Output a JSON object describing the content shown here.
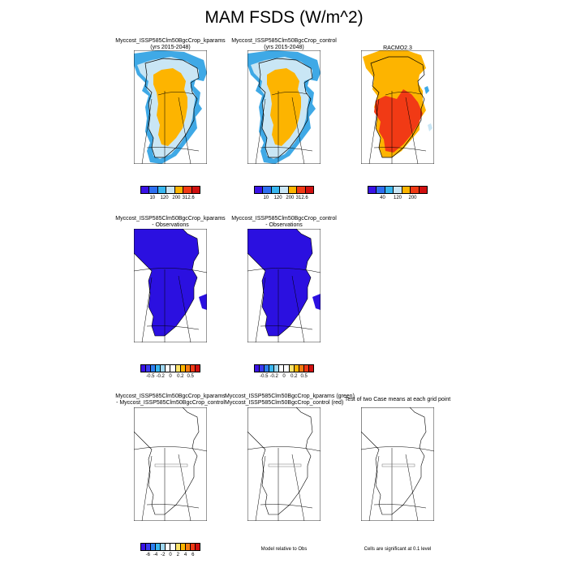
{
  "figure": {
    "title": "MAM FSDS (W/m^2)"
  },
  "colors": {
    "ocean_dark": "#3fa9e6",
    "ocean_light": "#c9e6f5",
    "interior_abs": "#fdb400",
    "interior_racmo_red": "#f13a15",
    "diff_blue": "#2b10e0",
    "outline": "#000000"
  },
  "chart_data": [
    {
      "type": "heatmap",
      "title": "Myccost_ISSP585Clm50BgcCrop_kparams",
      "subtitle": "(yrs 2015-2048)",
      "colorbar": {
        "colors": [
          "#3a12e6",
          "#2e6ff0",
          "#38b6ef",
          "#c9e6f5",
          "#fdb400",
          "#f13a15",
          "#d01010"
        ],
        "tick_labels": [
          "10",
          "120",
          "200",
          "312.6"
        ]
      }
    },
    {
      "type": "heatmap",
      "title": "Myccost_ISSP585Clm50BgcCrop_control",
      "subtitle": "(yrs 2015-2048)",
      "colorbar": {
        "colors": [
          "#3a12e6",
          "#2e6ff0",
          "#38b6ef",
          "#c9e6f5",
          "#fdb400",
          "#f13a15",
          "#d01010"
        ],
        "tick_labels": [
          "10",
          "120",
          "200",
          "312.6"
        ]
      }
    },
    {
      "type": "heatmap",
      "title": "RACMO2.3",
      "subtitle": "",
      "colorbar": {
        "colors": [
          "#3a12e6",
          "#2e6ff0",
          "#38b6ef",
          "#c9e6f5",
          "#fdb400",
          "#f13a15",
          "#d01010"
        ],
        "tick_labels": [
          "40",
          "120",
          "200"
        ]
      }
    },
    {
      "type": "heatmap",
      "title": "Myccost_ISSP585Clm50BgcCrop_kparams",
      "subtitle": "- Observations",
      "colorbar": {
        "colors": [
          "#3a12e6",
          "#3a3af0",
          "#2e7ff0",
          "#38b6ef",
          "#9fd8f2",
          "#ffffff",
          "#ffffff",
          "#fde36b",
          "#fdb400",
          "#f67a10",
          "#f13a15",
          "#d01010"
        ],
        "tick_labels": [
          "-0.5",
          "-0.2",
          "0",
          "0.2",
          "0.5"
        ]
      }
    },
    {
      "type": "heatmap",
      "title": "Myccost_ISSP585Clm50BgcCrop_control",
      "subtitle": "- Observations",
      "colorbar": {
        "colors": [
          "#3a12e6",
          "#3a3af0",
          "#2e7ff0",
          "#38b6ef",
          "#9fd8f2",
          "#ffffff",
          "#ffffff",
          "#fde36b",
          "#fdb400",
          "#f67a10",
          "#f13a15",
          "#d01010"
        ],
        "tick_labels": [
          "-0.5",
          "-0.2",
          "0",
          "0.2",
          "0.5"
        ]
      }
    },
    {
      "type": "heatmap",
      "title": "Myccost_ISSP585Clm50BgcCrop_kparams",
      "subtitle": "- Myccost_ISSP585Clm50BgcCrop_control",
      "colorbar": {
        "colors": [
          "#3a12e6",
          "#3a3af0",
          "#2e7ff0",
          "#38b6ef",
          "#9fd8f2",
          "#ffffff",
          "#ffffff",
          "#fde36b",
          "#fdb400",
          "#f67a10",
          "#f13a15",
          "#d01010"
        ],
        "tick_labels": [
          "-6",
          "-4",
          "-2",
          "0",
          "2",
          "4",
          "6"
        ]
      }
    },
    {
      "type": "heatmap",
      "title": "Myccost_ISSP585Clm50BgcCrop_kparams (green)",
      "subtitle": "Myccost_ISSP585Clm50BgcCrop_control (red)",
      "colorbar": null
    },
    {
      "type": "heatmap",
      "title": "Test of two Case means at each grid point",
      "subtitle": "",
      "colorbar": null
    }
  ],
  "footnotes": {
    "model_relative": "Model relative to Obs",
    "significance": "Cells are significant at 0.1 level"
  }
}
